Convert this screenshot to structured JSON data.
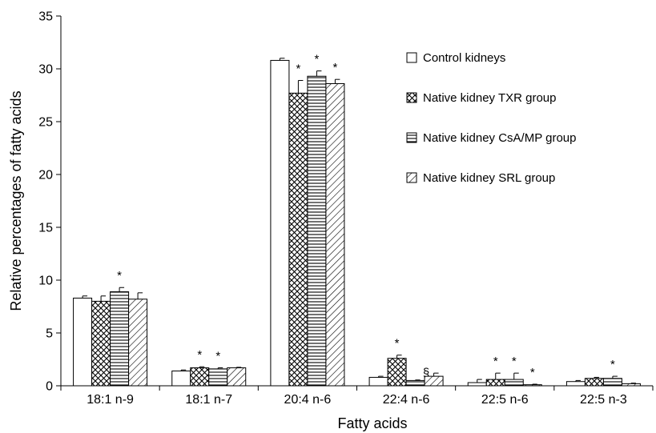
{
  "chart_data": {
    "type": "bar",
    "xlabel": "Fatty acids",
    "ylabel": "Relative percentages of fatty acids",
    "ylim": [
      0,
      35
    ],
    "yticks": [
      0,
      5,
      10,
      15,
      20,
      25,
      30,
      35
    ],
    "categories": [
      "18:1 n-9",
      "18:1 n-7",
      "20:4 n-6",
      "22:4 n-6",
      "22:5 n-6",
      "22:5 n-3"
    ],
    "legend_position": "top-right",
    "series": [
      {
        "name": "Control kidneys",
        "pattern": "blank",
        "values": [
          8.3,
          1.4,
          30.8,
          0.8,
          0.3,
          0.4
        ],
        "errors": [
          0.2,
          0.1,
          0.2,
          0.1,
          0.3,
          0.1
        ],
        "marks": [
          "",
          "",
          "",
          "",
          "",
          ""
        ]
      },
      {
        "name": "Native kidney TXR group",
        "pattern": "crosshatch",
        "values": [
          8.0,
          1.7,
          27.7,
          2.6,
          0.6,
          0.7
        ],
        "errors": [
          0.5,
          0.1,
          1.2,
          0.3,
          0.6,
          0.1
        ],
        "marks": [
          "",
          "*",
          "*",
          "*",
          "*",
          ""
        ]
      },
      {
        "name": "Native kidney CsA/MP group",
        "pattern": "horizontal",
        "values": [
          8.9,
          1.6,
          29.3,
          0.5,
          0.6,
          0.7
        ],
        "errors": [
          0.4,
          0.1,
          0.5,
          0.05,
          0.6,
          0.2
        ],
        "marks": [
          "*",
          "*",
          "*",
          "§",
          "*",
          "*"
        ]
      },
      {
        "name": "Native kidney SRL group",
        "pattern": "diagonal",
        "values": [
          8.2,
          1.7,
          28.6,
          0.9,
          0.1,
          0.2
        ],
        "errors": [
          0.6,
          0.05,
          0.4,
          0.3,
          0.05,
          0.05
        ],
        "marks": [
          "",
          "",
          "*",
          "",
          "*",
          ""
        ]
      }
    ]
  }
}
